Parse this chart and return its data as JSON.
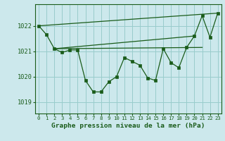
{
  "title": "Graphe pression niveau de la mer (hPa)",
  "bg_color": "#cce8ec",
  "plot_bg_color": "#cce8ec",
  "grid_color": "#99cccc",
  "line_color": "#1a5c1a",
  "marker_color": "#1a5c1a",
  "x_ticks": [
    0,
    1,
    2,
    3,
    4,
    5,
    6,
    7,
    8,
    9,
    10,
    11,
    12,
    13,
    14,
    15,
    16,
    17,
    18,
    19,
    20,
    21,
    22,
    23
  ],
  "y_ticks": [
    1019,
    1020,
    1021,
    1022
  ],
  "ylim": [
    1018.55,
    1022.85
  ],
  "xlim": [
    -0.5,
    23.5
  ],
  "series_main": {
    "x": [
      0,
      1,
      2,
      3,
      4,
      5,
      6,
      7,
      8,
      9,
      10,
      11,
      12,
      13,
      14,
      15,
      16,
      17,
      18,
      19,
      20,
      21,
      22,
      23
    ],
    "y": [
      1022.0,
      1021.65,
      1021.1,
      1020.95,
      1021.05,
      1021.05,
      1019.85,
      1019.4,
      1019.4,
      1019.8,
      1020.0,
      1020.75,
      1020.6,
      1020.45,
      1019.95,
      1019.85,
      1021.1,
      1020.55,
      1020.35,
      1021.15,
      1021.6,
      1022.4,
      1021.55,
      1022.5
    ]
  },
  "series_upper": {
    "x": [
      0,
      23
    ],
    "y": [
      1022.0,
      1022.5
    ]
  },
  "series_mid": {
    "x": [
      2,
      20
    ],
    "y": [
      1021.1,
      1021.6
    ]
  },
  "series_lower": {
    "x": [
      2,
      21
    ],
    "y": [
      1021.1,
      1021.15
    ]
  }
}
